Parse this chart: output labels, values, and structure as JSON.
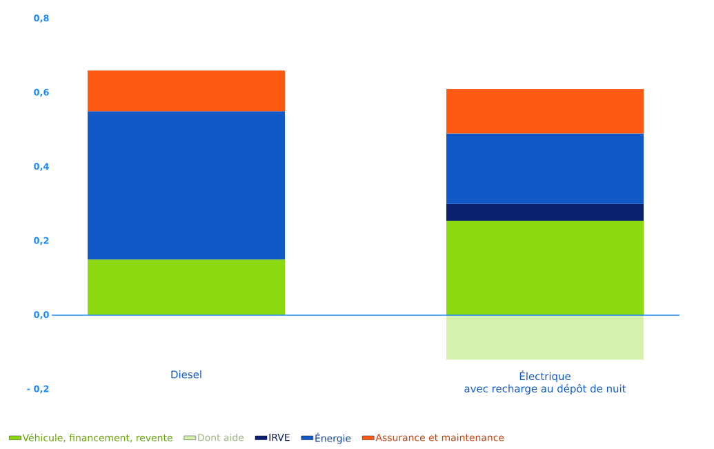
{
  "chart_data": {
    "type": "bar",
    "stacked": true,
    "categories": [
      "Diesel",
      "Électrique\navec recharge au dépôt de nuit"
    ],
    "series": [
      {
        "name": "Véhicule, financement, revente",
        "color": "#8cd911",
        "values": [
          0.15,
          0.255
        ]
      },
      {
        "name": "Dont aide",
        "color": "#d6f0ad",
        "values": [
          null,
          -0.12
        ]
      },
      {
        "name": "IRVE",
        "color": "#0a1f6e",
        "values": [
          null,
          0.045
        ]
      },
      {
        "name": "Énergie",
        "color": "#1259c8",
        "values": [
          0.4,
          0.19
        ]
      },
      {
        "name": "Assurance et maintenance",
        "color": "#ff5a14",
        "values": [
          0.11,
          0.12
        ]
      }
    ],
    "ylim": [
      -0.2,
      0.8
    ],
    "yticks": [
      {
        "value": -0.2,
        "label": "- 0,2"
      },
      {
        "value": 0,
        "label": "0,0"
      },
      {
        "value": 0.2,
        "label": "0,2"
      },
      {
        "value": 0.4,
        "label": "0,4"
      },
      {
        "value": 0.6,
        "label": "0,6"
      },
      {
        "value": 0.8,
        "label": "0,8"
      }
    ],
    "ref_lines": [
      {
        "axis": "y",
        "value": 0,
        "color": "#1a8cff"
      }
    ],
    "legend": "bottom"
  }
}
